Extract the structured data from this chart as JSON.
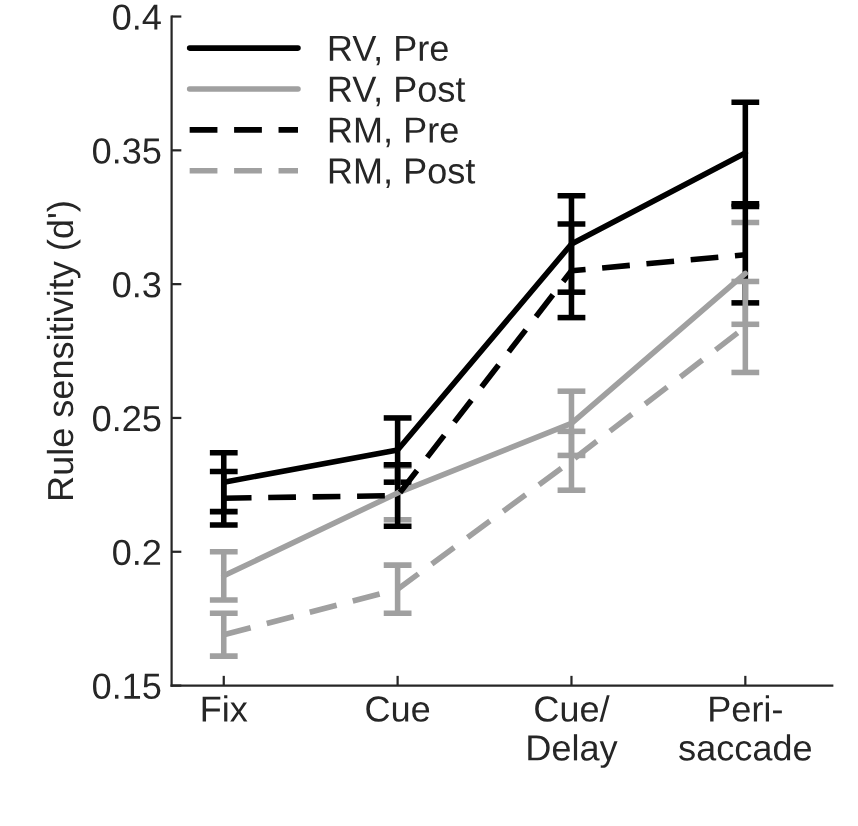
{
  "chart_data": {
    "type": "line",
    "ylabel": "Rule sensitivity (d')",
    "categories": [
      "Fix",
      "Cue",
      "Cue/\nDelay",
      "Peri-\nsaccade"
    ],
    "series": [
      {
        "name": "RV, Pre",
        "color": "#000000",
        "line_style": "solid",
        "values": [
          0.226,
          0.238,
          0.315,
          0.349
        ],
        "errors": [
          0.011,
          0.012,
          0.018,
          0.019
        ]
      },
      {
        "name": "RV, Post",
        "color": "#a0a0a0",
        "line_style": "solid",
        "values": [
          0.191,
          0.222,
          0.248,
          0.304
        ],
        "errors": [
          0.009,
          0.01,
          0.012,
          0.019
        ]
      },
      {
        "name": "RM, Pre",
        "color": "#000000",
        "line_style": "dashed",
        "values": [
          0.22,
          0.221,
          0.305,
          0.311
        ],
        "errors": [
          0.01,
          0.0115,
          0.0175,
          0.018
        ]
      },
      {
        "name": "RM, Post",
        "color": "#a0a0a0",
        "line_style": "dashed",
        "values": [
          0.169,
          0.186,
          0.234,
          0.284
        ],
        "errors": [
          0.008,
          0.009,
          0.011,
          0.017
        ]
      }
    ],
    "ylim": [
      0.15,
      0.4
    ],
    "yticks": [
      0.15,
      0.2,
      0.25,
      0.3,
      0.35,
      0.4
    ],
    "grid": false,
    "legend": "top left"
  }
}
